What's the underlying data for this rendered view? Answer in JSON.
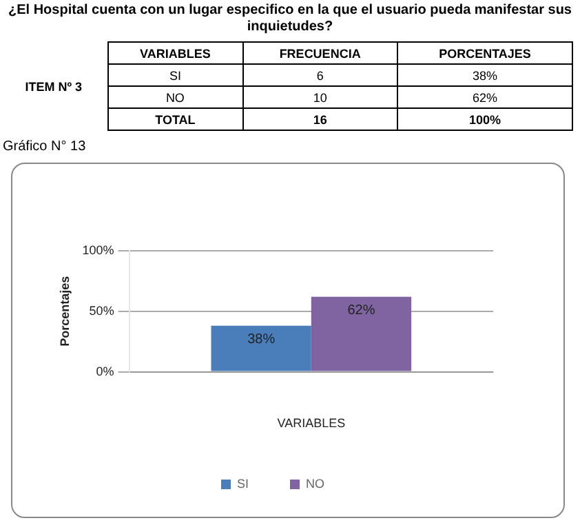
{
  "chart_data": {
    "type": "bar",
    "title": "¿El Hospital cuenta con un lugar especifico en la que el usuario pueda manifestar sus inquietudes?",
    "annotations": [
      "ITEM Nº 3",
      "VARIABLES",
      "FRECUENCIA",
      "PORCENTAJES",
      "SI",
      "6",
      "38%",
      "NO",
      "10",
      "62%",
      "TOTAL",
      "16",
      "100%",
      "Gráfico N° 13"
    ],
    "categories": [
      null
    ],
    "series": [
      {
        "name": "SI",
        "color": "#4a7ebb",
        "values": [
          38
        ],
        "value_labels": [
          "38%"
        ]
      },
      {
        "name": "NO",
        "color": "#8064a2",
        "values": [
          62
        ],
        "value_labels": [
          "62%"
        ]
      }
    ],
    "xlabel": "VARIABLES",
    "ylabel": "Porcentajes",
    "ylim": [
      0,
      100
    ],
    "yticks": [
      {
        "value": 0,
        "label": "0%"
      },
      {
        "value": 50,
        "label": "50%"
      },
      {
        "value": 100,
        "label": "100%"
      }
    ],
    "grid": "y",
    "legend": "bottom"
  }
}
